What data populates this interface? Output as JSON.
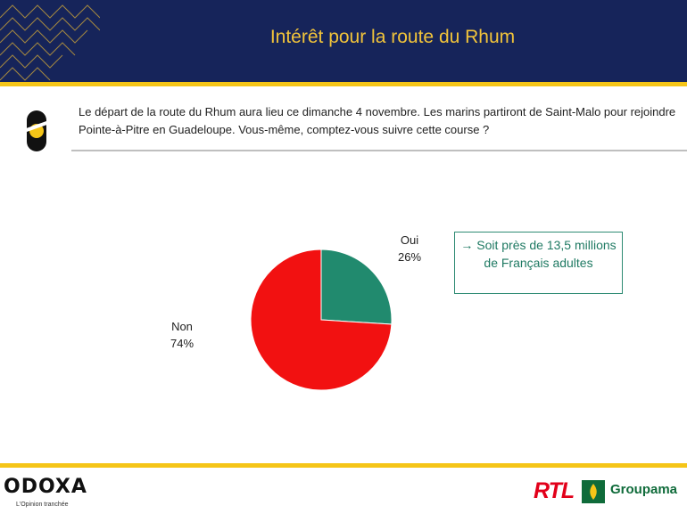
{
  "header": {
    "title": "Intérêt pour la route du Rhum"
  },
  "question": {
    "text": "Le départ de la route du Rhum aura lieu ce dimanche 4 novembre. Les marins partiront de Saint-Malo pour rejoindre Pointe-à-Pitre en Guadeloupe. Vous-même, comptez-vous suivre cette course ?"
  },
  "callout": {
    "text": "→ Soit près de 13,5 millions de Français adultes"
  },
  "chart_data": {
    "type": "pie",
    "title": "",
    "slices": [
      {
        "label": "Oui",
        "value": 26,
        "value_label": "26%",
        "color": "#218a6e"
      },
      {
        "label": "Non",
        "value": 74,
        "value_label": "74%",
        "color": "#f21111"
      }
    ]
  },
  "footer": {
    "brand": "ODOXA",
    "tagline": "L'Opinion tranchée",
    "partner1": "RTL",
    "partner2": "Groupama"
  },
  "colors": {
    "navy": "#16245a",
    "gold": "#f5c518",
    "teal": "#2e8b73"
  }
}
